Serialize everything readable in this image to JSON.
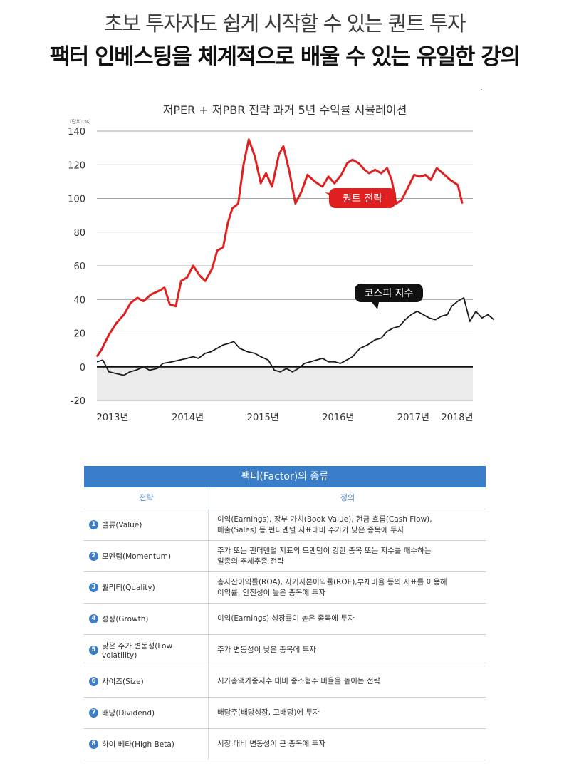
{
  "header": {
    "subtitle": "초보 투자자도 쉽게 시작할 수 있는 퀀트 투자",
    "headline": "팩터 인베스팅을 체계적으로 배울 수 있는 유일한 강의"
  },
  "chart_data": {
    "type": "line",
    "title": "저PER + 저PBR 전략 과거 5년 수익률 시뮬레이션",
    "unit_label": "(단위: %)",
    "ylim": [
      -20,
      140
    ],
    "yticks": [
      140,
      120,
      100,
      80,
      60,
      40,
      20,
      0,
      -20
    ],
    "xlim": [
      2013,
      2018
    ],
    "xticks": [
      {
        "v": 2013.0,
        "label": "2013년"
      },
      {
        "v": 2014.0,
        "label": "2014년"
      },
      {
        "v": 2015.0,
        "label": "2015년"
      },
      {
        "v": 2016.0,
        "label": "2016년"
      },
      {
        "v": 2017.0,
        "label": "2017년"
      },
      {
        "v": 2018.0,
        "label": "2018년"
      }
    ],
    "grid": true,
    "series": [
      {
        "name": "퀀트 전략",
        "color": "#e02020",
        "points": [
          [
            2013.0,
            6
          ],
          [
            2013.06,
            10
          ],
          [
            2013.16,
            19
          ],
          [
            2013.26,
            26
          ],
          [
            2013.36,
            31
          ],
          [
            2013.45,
            38
          ],
          [
            2013.54,
            41
          ],
          [
            2013.62,
            39
          ],
          [
            2013.72,
            43
          ],
          [
            2013.82,
            45
          ],
          [
            2013.9,
            47
          ],
          [
            2013.97,
            37
          ],
          [
            2014.05,
            36
          ],
          [
            2014.12,
            51
          ],
          [
            2014.2,
            53
          ],
          [
            2014.28,
            60
          ],
          [
            2014.37,
            54
          ],
          [
            2014.44,
            51
          ],
          [
            2014.53,
            58
          ],
          [
            2014.6,
            69
          ],
          [
            2014.68,
            71
          ],
          [
            2014.74,
            85
          ],
          [
            2014.8,
            94
          ],
          [
            2014.88,
            97
          ],
          [
            2014.95,
            120
          ],
          [
            2015.02,
            135
          ],
          [
            2015.1,
            125
          ],
          [
            2015.18,
            109
          ],
          [
            2015.25,
            115
          ],
          [
            2015.33,
            107
          ],
          [
            2015.42,
            126
          ],
          [
            2015.48,
            131
          ],
          [
            2015.56,
            116
          ],
          [
            2015.64,
            97
          ],
          [
            2015.72,
            104
          ],
          [
            2015.8,
            114
          ],
          [
            2015.9,
            110
          ],
          [
            2016.0,
            107
          ],
          [
            2016.08,
            113
          ],
          [
            2016.16,
            109
          ],
          [
            2016.25,
            114
          ],
          [
            2016.33,
            121
          ],
          [
            2016.4,
            123
          ],
          [
            2016.48,
            121
          ],
          [
            2016.56,
            117
          ],
          [
            2016.62,
            115
          ],
          [
            2016.7,
            117
          ],
          [
            2016.78,
            115
          ],
          [
            2016.86,
            118
          ],
          [
            2016.92,
            111
          ],
          [
            2016.98,
            97
          ],
          [
            2017.05,
            99
          ],
          [
            2017.12,
            105
          ],
          [
            2017.22,
            114
          ],
          [
            2017.3,
            113
          ],
          [
            2017.37,
            114
          ],
          [
            2017.44,
            111
          ],
          [
            2017.52,
            118
          ],
          [
            2017.6,
            115
          ],
          [
            2017.7,
            111
          ],
          [
            2017.8,
            108
          ],
          [
            2017.86,
            97
          ]
        ]
      },
      {
        "name": "코스피 지수",
        "color": "#1a1a1a",
        "points": [
          [
            2013.0,
            3
          ],
          [
            2013.08,
            4
          ],
          [
            2013.16,
            -3
          ],
          [
            2013.26,
            -4
          ],
          [
            2013.36,
            -5
          ],
          [
            2013.44,
            -3
          ],
          [
            2013.52,
            -2
          ],
          [
            2013.62,
            0
          ],
          [
            2013.7,
            -2
          ],
          [
            2013.8,
            -1
          ],
          [
            2013.88,
            2
          ],
          [
            2014.0,
            3
          ],
          [
            2014.1,
            4
          ],
          [
            2014.2,
            5
          ],
          [
            2014.28,
            6
          ],
          [
            2014.35,
            5
          ],
          [
            2014.44,
            8
          ],
          [
            2014.52,
            9
          ],
          [
            2014.6,
            11
          ],
          [
            2014.68,
            13
          ],
          [
            2014.76,
            14
          ],
          [
            2014.82,
            15
          ],
          [
            2014.9,
            11
          ],
          [
            2015.0,
            9
          ],
          [
            2015.1,
            8
          ],
          [
            2015.18,
            6
          ],
          [
            2015.28,
            4
          ],
          [
            2015.36,
            -2
          ],
          [
            2015.44,
            -3
          ],
          [
            2015.52,
            -1
          ],
          [
            2015.6,
            -3
          ],
          [
            2015.68,
            -1
          ],
          [
            2015.76,
            2
          ],
          [
            2015.84,
            3
          ],
          [
            2015.92,
            4
          ],
          [
            2016.0,
            5
          ],
          [
            2016.08,
            3
          ],
          [
            2016.16,
            3
          ],
          [
            2016.24,
            2
          ],
          [
            2016.32,
            4
          ],
          [
            2016.4,
            6
          ],
          [
            2016.5,
            11
          ],
          [
            2016.6,
            13
          ],
          [
            2016.7,
            16
          ],
          [
            2016.78,
            17
          ],
          [
            2016.86,
            21
          ],
          [
            2016.94,
            23
          ],
          [
            2017.02,
            24
          ],
          [
            2017.1,
            28
          ],
          [
            2017.18,
            31
          ],
          [
            2017.26,
            33
          ],
          [
            2017.34,
            31
          ],
          [
            2017.42,
            29
          ],
          [
            2017.5,
            28
          ],
          [
            2017.58,
            30
          ],
          [
            2017.66,
            31
          ],
          [
            2017.72,
            36
          ],
          [
            2017.8,
            39
          ],
          [
            2017.88,
            41
          ],
          [
            2017.96,
            27
          ],
          [
            2018.04,
            33
          ],
          [
            2018.12,
            29
          ],
          [
            2018.2,
            31
          ],
          [
            2018.28,
            28
          ]
        ]
      }
    ],
    "callouts": [
      {
        "label": "퀀트 전략",
        "bg": "#e02020",
        "color": "#ffffff"
      },
      {
        "label": "코스피 지수",
        "bg": "#111111",
        "color": "#ffffff"
      }
    ]
  },
  "table": {
    "title": "팩터(Factor)의 종류",
    "col1_header": "전략",
    "col2_header": "정의",
    "rows": [
      {
        "num": "1",
        "name": "밸류(Value)",
        "definition": "이익(Earnings), 장부 가치(Book Value), 현금 흐름(Cash Flow),\n매출(Sales) 등 펀더멘털 지표대비 주가가 낮은 종목에 투자"
      },
      {
        "num": "2",
        "name": "모멘텀(Momentum)",
        "definition": "주가 또는 펀더멘털 지표의 모멘텀이 강한 종목 또는 지수를 매수하는\n일종의 추세추종 전략"
      },
      {
        "num": "3",
        "name": "퀄리티(Quality)",
        "definition": "총자산이익률(ROA), 자기자본이익률(ROE),부채비율 등의 지표를 이용해\n이익률, 안전성이 높은 종목에 투자"
      },
      {
        "num": "4",
        "name": "성장(Growth)",
        "definition": "이익(Earnings) 성장률이 높은 종목에 투자"
      },
      {
        "num": "5",
        "name": "낮은 주가 변동성(Low volatility)",
        "definition": "주가 변동성이 낮은 종목에 투자"
      },
      {
        "num": "6",
        "name": "사이즈(Size)",
        "definition": "시가총액가중지수 대비 중소형주 비율을 높이는 전략"
      },
      {
        "num": "7",
        "name": "배당(Dividend)",
        "definition": "배당주(배당성장, 고배당)에 투자"
      },
      {
        "num": "8",
        "name": "하이 베타(High Beta)",
        "definition": "시장 대비 변동성이 큰 종목에 투자"
      }
    ]
  }
}
